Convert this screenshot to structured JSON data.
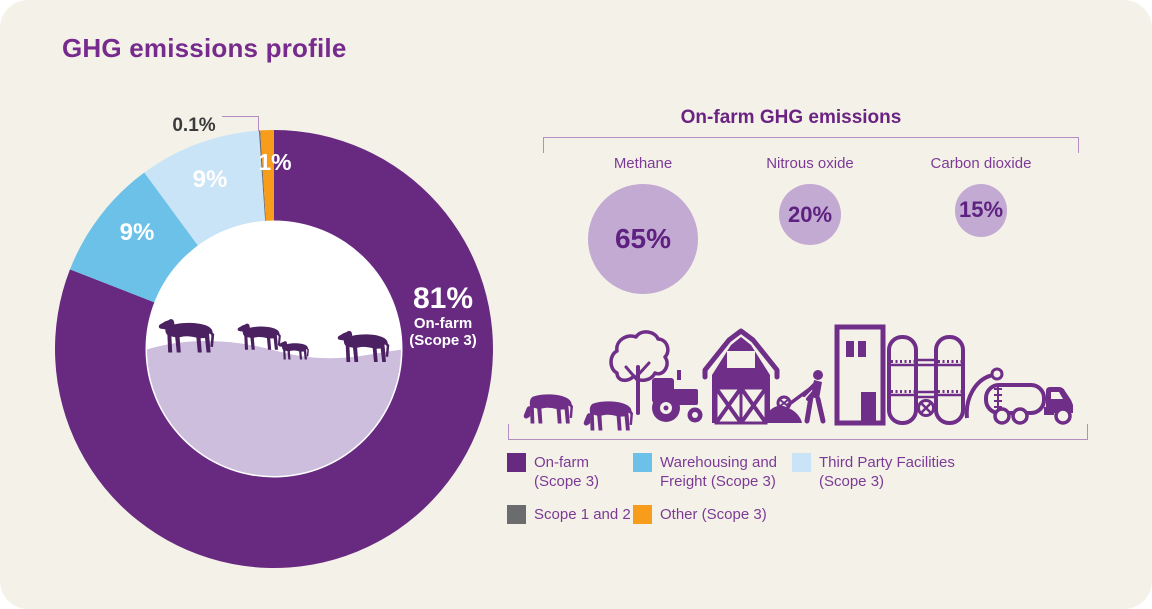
{
  "title": "GHG emissions profile",
  "colors": {
    "purple": "#682a80",
    "blue": "#6cc1e9",
    "light_blue": "#c9e3f7",
    "gray": "#6b6c6e",
    "orange": "#f89c1c",
    "lavender": "#c3aad3",
    "hill_lavender": "#cdbedd",
    "cow_purple": "#4b2162",
    "illustration_purple": "#6f2f88",
    "heading_purple": "#762b8d",
    "text_purple": "#7c3a96",
    "dark_label": "#3b3b3d",
    "bracket": "#b48ec0",
    "background": "#f4f2e8"
  },
  "chart_data": [
    {
      "type": "donut",
      "title": "GHG emissions profile",
      "unit": "%",
      "start_angle_deg": 0,
      "direction": "clockwise",
      "segments": [
        {
          "label": "On-farm (Scope 3)",
          "value": 81,
          "display": "81%",
          "color_key": "purple"
        },
        {
          "label": "Warehousing and Freight (Scope 3)",
          "value": 9,
          "display": "9%",
          "color_key": "blue"
        },
        {
          "label": "Third Party Facilities (Scope 3)",
          "value": 9,
          "display": "9%",
          "color_key": "light_blue"
        },
        {
          "label": "Scope 1 and 2",
          "value": 0.1,
          "display": "0.1%",
          "color_key": "gray"
        },
        {
          "label": "Other (Scope 3)",
          "value": 1,
          "display": "1%",
          "color_key": "orange"
        }
      ],
      "center_label": {
        "pct": "81%",
        "line1": "On-farm",
        "line2": "(Scope 3)"
      }
    },
    {
      "type": "bubble",
      "title": "On-farm GHG emissions",
      "unit": "%",
      "items": [
        {
          "label": "Methane",
          "value": 65,
          "display": "65%"
        },
        {
          "label": "Nitrous oxide",
          "value": 20,
          "display": "20%"
        },
        {
          "label": "Carbon dioxide",
          "value": 15,
          "display": "15%"
        }
      ]
    }
  ],
  "legend": {
    "items": [
      {
        "label": "On-farm (Scope 3)",
        "color_key": "purple"
      },
      {
        "label": "Warehousing and Freight (Scope 3)",
        "color_key": "blue"
      },
      {
        "label": "Third Party Facilities (Scope 3)",
        "color_key": "light_blue"
      },
      {
        "label": "Scope 1 and 2",
        "color_key": "gray"
      },
      {
        "label": "Other (Scope 3)",
        "color_key": "orange"
      }
    ]
  }
}
